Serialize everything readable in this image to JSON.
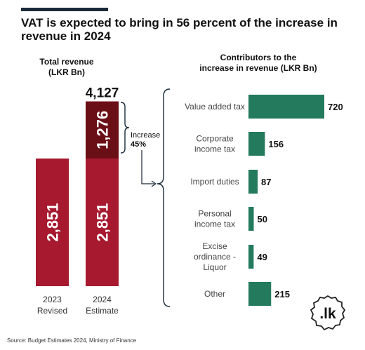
{
  "title": "VAT is expected to bring in 56 percent of the increase in revenue in 2024",
  "source": "Source: Budget Estimates 2024, Ministry of Finance",
  "logo_text": ".lk",
  "colors": {
    "base_bar": "#a6192e",
    "increase_bar": "#6b0f17",
    "contrib_bar": "#237a5d",
    "bracket": "#1b2a3a"
  },
  "chart_data": [
    {
      "type": "bar",
      "title": "Total revenue (LKR Bn)",
      "categories": [
        "2023 Revised",
        "2024 Estimate"
      ],
      "series": [
        {
          "values": [
            2851,
            2851
          ]
        },
        {
          "values": [
            0,
            1276
          ]
        }
      ],
      "total_label": "4,127",
      "base_labels": [
        "2,851",
        "2,851"
      ],
      "increase_label": "1,276",
      "annotation": "Increase 45%"
    },
    {
      "type": "bar",
      "orientation": "horizontal",
      "title": "Contributors to the increase in revenue (LKR Bn)",
      "categories": [
        "Value added tax",
        "Corporate income tax",
        "Import duties",
        "Personal income tax",
        "Excise ordinance - Liquor",
        "Other"
      ],
      "values": [
        720,
        156,
        87,
        50,
        49,
        215
      ]
    }
  ]
}
